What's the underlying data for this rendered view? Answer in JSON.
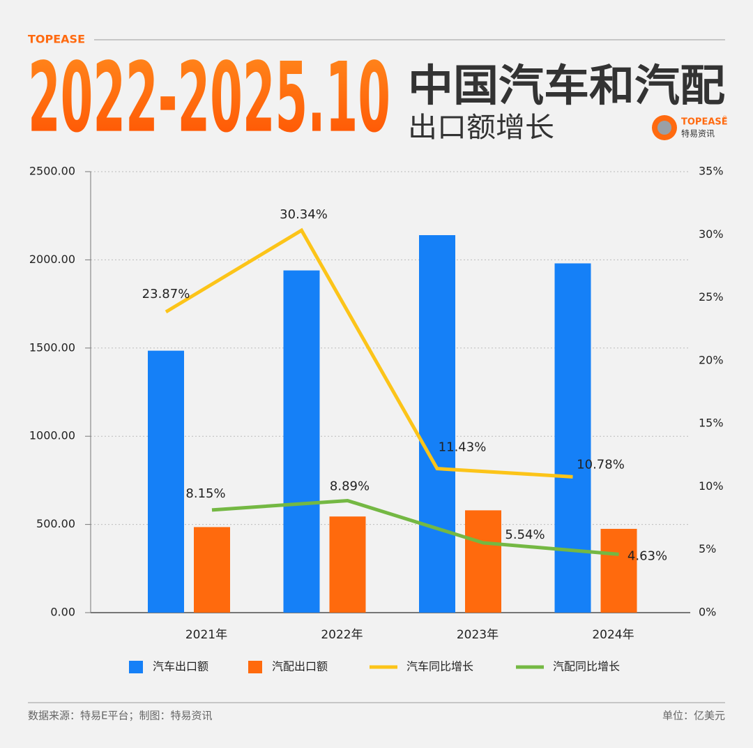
{
  "brand": "TOPEASE",
  "title_number": "2022-2025.10",
  "title_main": "中国汽车和汽配",
  "title_sub": "出口额增长",
  "logo": {
    "name": "TOPEASE",
    "mark": "®",
    "cn": "特易资讯"
  },
  "footer": {
    "source": "数据来源：特易E平台；制图：特易资讯",
    "unit": "单位：亿美元"
  },
  "chart_data": {
    "type": "combo",
    "categories": [
      "2021年",
      "2022年",
      "2023年",
      "2024年"
    ],
    "series": [
      {
        "name": "汽车出口额",
        "type": "bar",
        "color": "#1580f7",
        "values": [
          1485,
          1940,
          2140,
          1980
        ]
      },
      {
        "name": "汽配出口额",
        "type": "bar",
        "color": "#ff6a0d",
        "values": [
          485,
          545,
          580,
          475
        ]
      },
      {
        "name": "汽车同比增长",
        "type": "line",
        "axis": "y2",
        "color": "#fcc419",
        "values": [
          23.87,
          30.34,
          11.43,
          10.78
        ],
        "value_labels": [
          "23.87%",
          "30.34%",
          "11.43%",
          "10.78%"
        ]
      },
      {
        "name": "汽配同比增长",
        "type": "line",
        "axis": "y2",
        "color": "#74b843",
        "values": [
          8.15,
          8.89,
          5.54,
          4.63
        ],
        "value_labels": [
          "8.15%",
          "8.89%",
          "5.54%",
          "4.63%"
        ]
      }
    ],
    "ylim": [
      0,
      2500
    ],
    "yticks": [
      {
        "value": 0,
        "label": "0.00"
      },
      {
        "value": 500,
        "label": "500.00"
      },
      {
        "value": 1000,
        "label": "1000.00"
      },
      {
        "value": 1500,
        "label": "1500.00"
      },
      {
        "value": 2000,
        "label": "2000.00"
      },
      {
        "value": 2500,
        "label": "2500.00"
      }
    ],
    "y2lim": [
      0,
      35
    ],
    "y2ticks": [
      {
        "value": 0,
        "label": "0%"
      },
      {
        "value": 5,
        "label": "5%"
      },
      {
        "value": 10,
        "label": "10%"
      },
      {
        "value": 15,
        "label": "15%"
      },
      {
        "value": 20,
        "label": "20%"
      },
      {
        "value": 25,
        "label": "25%"
      },
      {
        "value": 30,
        "label": "30%"
      },
      {
        "value": 35,
        "label": "35%"
      }
    ],
    "grid": true
  }
}
